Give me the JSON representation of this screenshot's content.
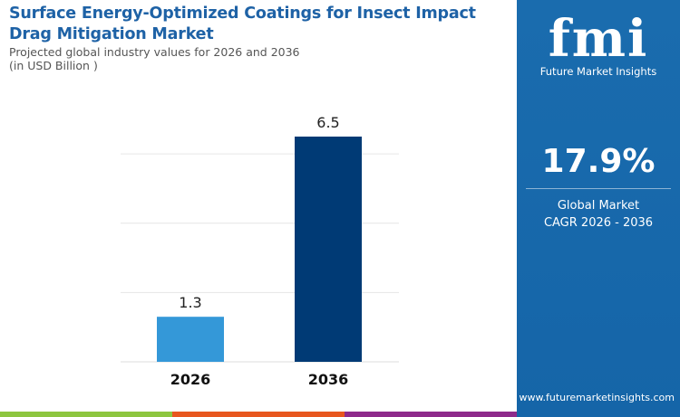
{
  "title": "Surface Energy-Optimized Coatings for Insect Impact Drag Mitigation Market",
  "subtitle": "Projected global industry values for 2026 and 2036",
  "unit": "(in USD Billion )",
  "brand": {
    "logo_text": "fmi",
    "name": "Future Market Insights",
    "url": "www.futuremarketinsights.com"
  },
  "cagr": {
    "value": "17.9%",
    "label1": "Global Market",
    "label2": "CAGR 2026 - 2036"
  },
  "colors": {
    "panel": "#1a6aad",
    "bar2026": "#3498d8",
    "bar2036": "#003a75",
    "strip": [
      "#8dc63f",
      "#e8561e",
      "#8e2a8b"
    ]
  },
  "chart_data": {
    "type": "bar",
    "categories": [
      "2026",
      "2036"
    ],
    "values": [
      1.3,
      6.5
    ],
    "data_labels": [
      "1.3",
      "6.5"
    ],
    "ylim": [
      0,
      6.5
    ],
    "grid": true,
    "gridlines": [
      2,
      4,
      6
    ]
  }
}
